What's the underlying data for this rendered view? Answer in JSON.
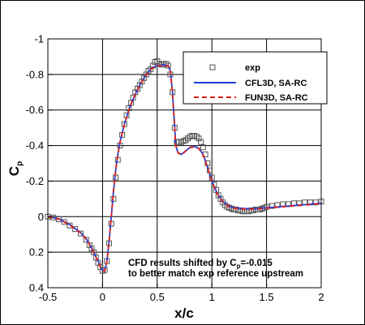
{
  "chart_data": {
    "type": "line",
    "xlabel": "x/c",
    "ylabel": "C",
    "ylabel_subscript": "p",
    "xlim": [
      -0.5,
      2.0
    ],
    "ylim": [
      0.4,
      -1.0
    ],
    "y_axis_inverted": true,
    "grid": true,
    "x_ticks": [
      -0.5,
      0,
      0.5,
      1,
      1.5,
      2
    ],
    "x_tick_labels": [
      "-0.5",
      "0",
      "0.5",
      "1",
      "1.5",
      "2"
    ],
    "y_ticks": [
      -1,
      -0.8,
      -0.6,
      -0.4,
      -0.2,
      0,
      0.2,
      0.4
    ],
    "y_tick_labels": [
      "-1",
      "-0.8",
      "-0.6",
      "-0.4",
      "-0.2",
      "0",
      "0.2",
      "0.4"
    ],
    "legend_position": "top-right",
    "series": [
      {
        "name": "exp",
        "kind": "markers",
        "marker": "open-square",
        "color": "#555555",
        "points": [
          [
            -0.5,
            0.0
          ],
          [
            -0.45,
            0.005
          ],
          [
            -0.4,
            0.015
          ],
          [
            -0.35,
            0.03
          ],
          [
            -0.3,
            0.05
          ],
          [
            -0.25,
            0.07
          ],
          [
            -0.2,
            0.095
          ],
          [
            -0.15,
            0.13
          ],
          [
            -0.12,
            0.16
          ],
          [
            -0.1,
            0.18
          ],
          [
            -0.08,
            0.2
          ],
          [
            -0.06,
            0.23
          ],
          [
            -0.04,
            0.26
          ],
          [
            -0.02,
            0.285
          ],
          [
            0.0,
            0.305
          ],
          [
            0.02,
            0.3
          ],
          [
            0.04,
            0.25
          ],
          [
            0.06,
            0.15
          ],
          [
            0.08,
            0.04
          ],
          [
            0.1,
            -0.1
          ],
          [
            0.12,
            -0.22
          ],
          [
            0.14,
            -0.32
          ],
          [
            0.16,
            -0.4
          ],
          [
            0.18,
            -0.46
          ],
          [
            0.2,
            -0.52
          ],
          [
            0.22,
            -0.57
          ],
          [
            0.24,
            -0.61
          ],
          [
            0.26,
            -0.64
          ],
          [
            0.28,
            -0.67
          ],
          [
            0.3,
            -0.7
          ],
          [
            0.32,
            -0.72
          ],
          [
            0.34,
            -0.74
          ],
          [
            0.36,
            -0.76
          ],
          [
            0.38,
            -0.78
          ],
          [
            0.4,
            -0.8
          ],
          [
            0.42,
            -0.82
          ],
          [
            0.44,
            -0.83
          ],
          [
            0.46,
            -0.85
          ],
          [
            0.48,
            -0.87
          ],
          [
            0.5,
            -0.875
          ],
          [
            0.52,
            -0.86
          ],
          [
            0.54,
            -0.855
          ],
          [
            0.56,
            -0.855
          ],
          [
            0.58,
            -0.86
          ],
          [
            0.6,
            -0.85
          ],
          [
            0.62,
            -0.8
          ],
          [
            0.64,
            -0.7
          ],
          [
            0.66,
            -0.5
          ],
          [
            0.68,
            -0.42
          ],
          [
            0.7,
            -0.42
          ],
          [
            0.72,
            -0.42
          ],
          [
            0.74,
            -0.425
          ],
          [
            0.76,
            -0.43
          ],
          [
            0.78,
            -0.44
          ],
          [
            0.8,
            -0.45
          ],
          [
            0.82,
            -0.455
          ],
          [
            0.84,
            -0.455
          ],
          [
            0.86,
            -0.45
          ],
          [
            0.88,
            -0.44
          ],
          [
            0.9,
            -0.42
          ],
          [
            0.92,
            -0.39
          ],
          [
            0.94,
            -0.35
          ],
          [
            0.96,
            -0.3
          ],
          [
            0.98,
            -0.26
          ],
          [
            1.0,
            -0.22
          ],
          [
            1.02,
            -0.18
          ],
          [
            1.04,
            -0.15
          ],
          [
            1.06,
            -0.12
          ],
          [
            1.08,
            -0.1
          ],
          [
            1.1,
            -0.08
          ],
          [
            1.12,
            -0.065
          ],
          [
            1.14,
            -0.055
          ],
          [
            1.16,
            -0.05
          ],
          [
            1.18,
            -0.045
          ],
          [
            1.2,
            -0.04
          ],
          [
            1.22,
            -0.04
          ],
          [
            1.24,
            -0.035
          ],
          [
            1.26,
            -0.035
          ],
          [
            1.28,
            -0.03
          ],
          [
            1.3,
            -0.03
          ],
          [
            1.32,
            -0.03
          ],
          [
            1.34,
            -0.03
          ],
          [
            1.36,
            -0.035
          ],
          [
            1.38,
            -0.035
          ],
          [
            1.4,
            -0.04
          ],
          [
            1.42,
            -0.04
          ],
          [
            1.44,
            -0.04
          ],
          [
            1.46,
            -0.045
          ],
          [
            1.48,
            -0.05
          ],
          [
            1.5,
            -0.055
          ],
          [
            1.55,
            -0.06
          ],
          [
            1.6,
            -0.065
          ],
          [
            1.65,
            -0.07
          ],
          [
            1.7,
            -0.07
          ],
          [
            1.75,
            -0.075
          ],
          [
            1.8,
            -0.075
          ],
          [
            1.85,
            -0.08
          ],
          [
            1.9,
            -0.08
          ],
          [
            1.95,
            -0.08
          ],
          [
            2.0,
            -0.085
          ]
        ]
      },
      {
        "name": "CFL3D, SA-RC",
        "kind": "line",
        "color": "#1f3fe0",
        "dash": "solid",
        "points": [
          [
            -0.5,
            0.0
          ],
          [
            -0.4,
            0.012
          ],
          [
            -0.3,
            0.045
          ],
          [
            -0.2,
            0.09
          ],
          [
            -0.15,
            0.125
          ],
          [
            -0.1,
            0.175
          ],
          [
            -0.05,
            0.24
          ],
          [
            -0.02,
            0.28
          ],
          [
            0.0,
            0.3
          ],
          [
            0.02,
            0.305
          ],
          [
            0.04,
            0.25
          ],
          [
            0.06,
            0.14
          ],
          [
            0.08,
            0.0
          ],
          [
            0.1,
            -0.14
          ],
          [
            0.12,
            -0.26
          ],
          [
            0.14,
            -0.35
          ],
          [
            0.16,
            -0.42
          ],
          [
            0.2,
            -0.52
          ],
          [
            0.25,
            -0.62
          ],
          [
            0.3,
            -0.69
          ],
          [
            0.35,
            -0.75
          ],
          [
            0.4,
            -0.8
          ],
          [
            0.45,
            -0.835
          ],
          [
            0.5,
            -0.85
          ],
          [
            0.55,
            -0.855
          ],
          [
            0.6,
            -0.85
          ],
          [
            0.62,
            -0.82
          ],
          [
            0.64,
            -0.7
          ],
          [
            0.655,
            -0.55
          ],
          [
            0.67,
            -0.4
          ],
          [
            0.69,
            -0.36
          ],
          [
            0.72,
            -0.35
          ],
          [
            0.76,
            -0.37
          ],
          [
            0.8,
            -0.39
          ],
          [
            0.84,
            -0.395
          ],
          [
            0.88,
            -0.385
          ],
          [
            0.92,
            -0.35
          ],
          [
            0.96,
            -0.28
          ],
          [
            1.0,
            -0.2
          ],
          [
            1.05,
            -0.13
          ],
          [
            1.1,
            -0.085
          ],
          [
            1.15,
            -0.06
          ],
          [
            1.2,
            -0.05
          ],
          [
            1.3,
            -0.045
          ],
          [
            1.4,
            -0.045
          ],
          [
            1.5,
            -0.05
          ],
          [
            1.6,
            -0.055
          ],
          [
            1.7,
            -0.06
          ],
          [
            1.8,
            -0.065
          ],
          [
            1.9,
            -0.07
          ],
          [
            2.0,
            -0.075
          ]
        ]
      },
      {
        "name": "FUN3D, SA-RC",
        "kind": "line",
        "color": "#e01f1f",
        "dash": "dashed",
        "points": [
          [
            -0.5,
            0.002
          ],
          [
            -0.4,
            0.014
          ],
          [
            -0.3,
            0.047
          ],
          [
            -0.2,
            0.092
          ],
          [
            -0.15,
            0.127
          ],
          [
            -0.1,
            0.177
          ],
          [
            -0.05,
            0.242
          ],
          [
            -0.02,
            0.282
          ],
          [
            0.0,
            0.302
          ],
          [
            0.02,
            0.307
          ],
          [
            0.04,
            0.252
          ],
          [
            0.06,
            0.142
          ],
          [
            0.08,
            0.002
          ],
          [
            0.1,
            -0.138
          ],
          [
            0.12,
            -0.258
          ],
          [
            0.14,
            -0.348
          ],
          [
            0.16,
            -0.418
          ],
          [
            0.2,
            -0.518
          ],
          [
            0.25,
            -0.618
          ],
          [
            0.3,
            -0.688
          ],
          [
            0.35,
            -0.748
          ],
          [
            0.4,
            -0.798
          ],
          [
            0.45,
            -0.833
          ],
          [
            0.5,
            -0.848
          ],
          [
            0.55,
            -0.853
          ],
          [
            0.6,
            -0.848
          ],
          [
            0.62,
            -0.818
          ],
          [
            0.64,
            -0.698
          ],
          [
            0.655,
            -0.548
          ],
          [
            0.67,
            -0.398
          ],
          [
            0.69,
            -0.358
          ],
          [
            0.72,
            -0.348
          ],
          [
            0.76,
            -0.368
          ],
          [
            0.8,
            -0.388
          ],
          [
            0.84,
            -0.393
          ],
          [
            0.88,
            -0.383
          ],
          [
            0.92,
            -0.348
          ],
          [
            0.96,
            -0.278
          ],
          [
            1.0,
            -0.198
          ],
          [
            1.05,
            -0.128
          ],
          [
            1.1,
            -0.083
          ],
          [
            1.15,
            -0.058
          ],
          [
            1.2,
            -0.048
          ],
          [
            1.3,
            -0.043
          ],
          [
            1.4,
            -0.043
          ],
          [
            1.5,
            -0.048
          ],
          [
            1.6,
            -0.053
          ],
          [
            1.7,
            -0.058
          ],
          [
            1.8,
            -0.063
          ],
          [
            1.9,
            -0.068
          ],
          [
            2.0,
            -0.073
          ]
        ]
      }
    ],
    "annotation": {
      "line1_prefix": "CFD results shifted by C",
      "line1_subscript": "p",
      "line1_suffix": "=-0.015",
      "line2": "to better match exp reference upstream"
    }
  }
}
